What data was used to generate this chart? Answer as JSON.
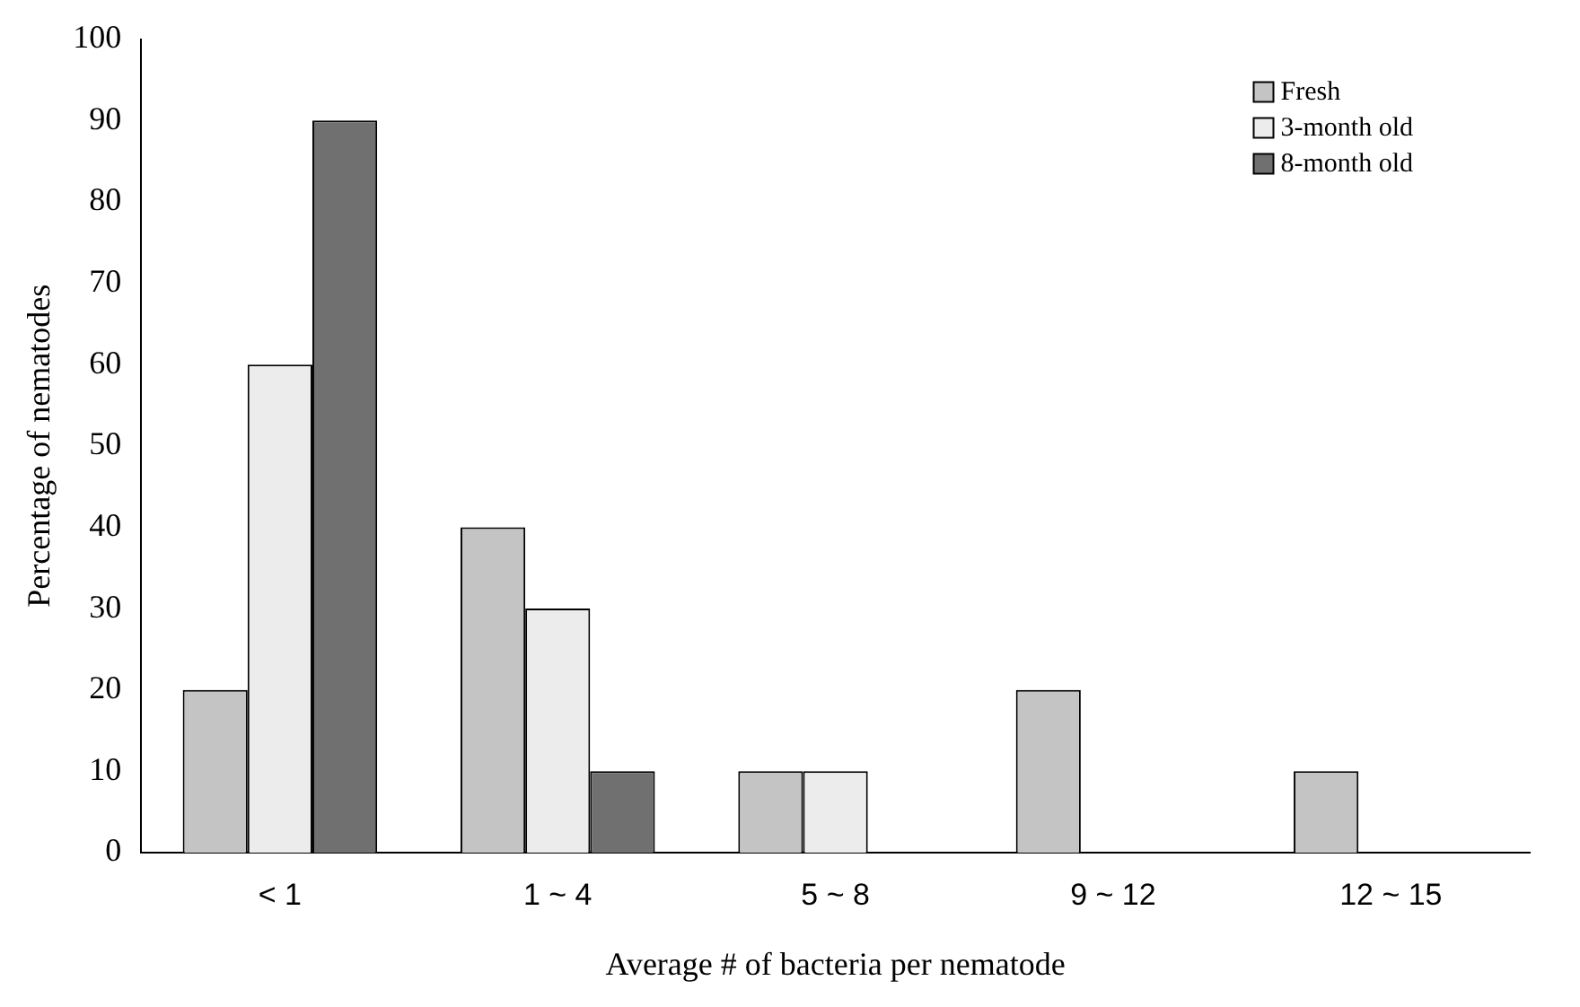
{
  "chart_data": {
    "type": "bar",
    "xlabel": "Average # of bacteria per nematode",
    "ylabel": "Percentage of nematodes",
    "categories": [
      "< 1",
      "1 ~ 4",
      "5 ~ 8",
      "9 ~ 12",
      "12 ~ 15"
    ],
    "series": [
      {
        "name": "Fresh",
        "color": "#c4c4c4",
        "values": [
          20,
          40,
          10,
          20,
          10
        ]
      },
      {
        "name": "3-month old",
        "color": "#ececec",
        "values": [
          60,
          30,
          10,
          0,
          0
        ]
      },
      {
        "name": "8-month old",
        "color": "#707070",
        "values": [
          90,
          10,
          0,
          0,
          0
        ]
      }
    ],
    "ylim": [
      0,
      100
    ],
    "yticks": [
      0,
      10,
      20,
      30,
      40,
      50,
      60,
      70,
      80,
      90,
      100
    ],
    "grid": false,
    "legend": "top right"
  }
}
